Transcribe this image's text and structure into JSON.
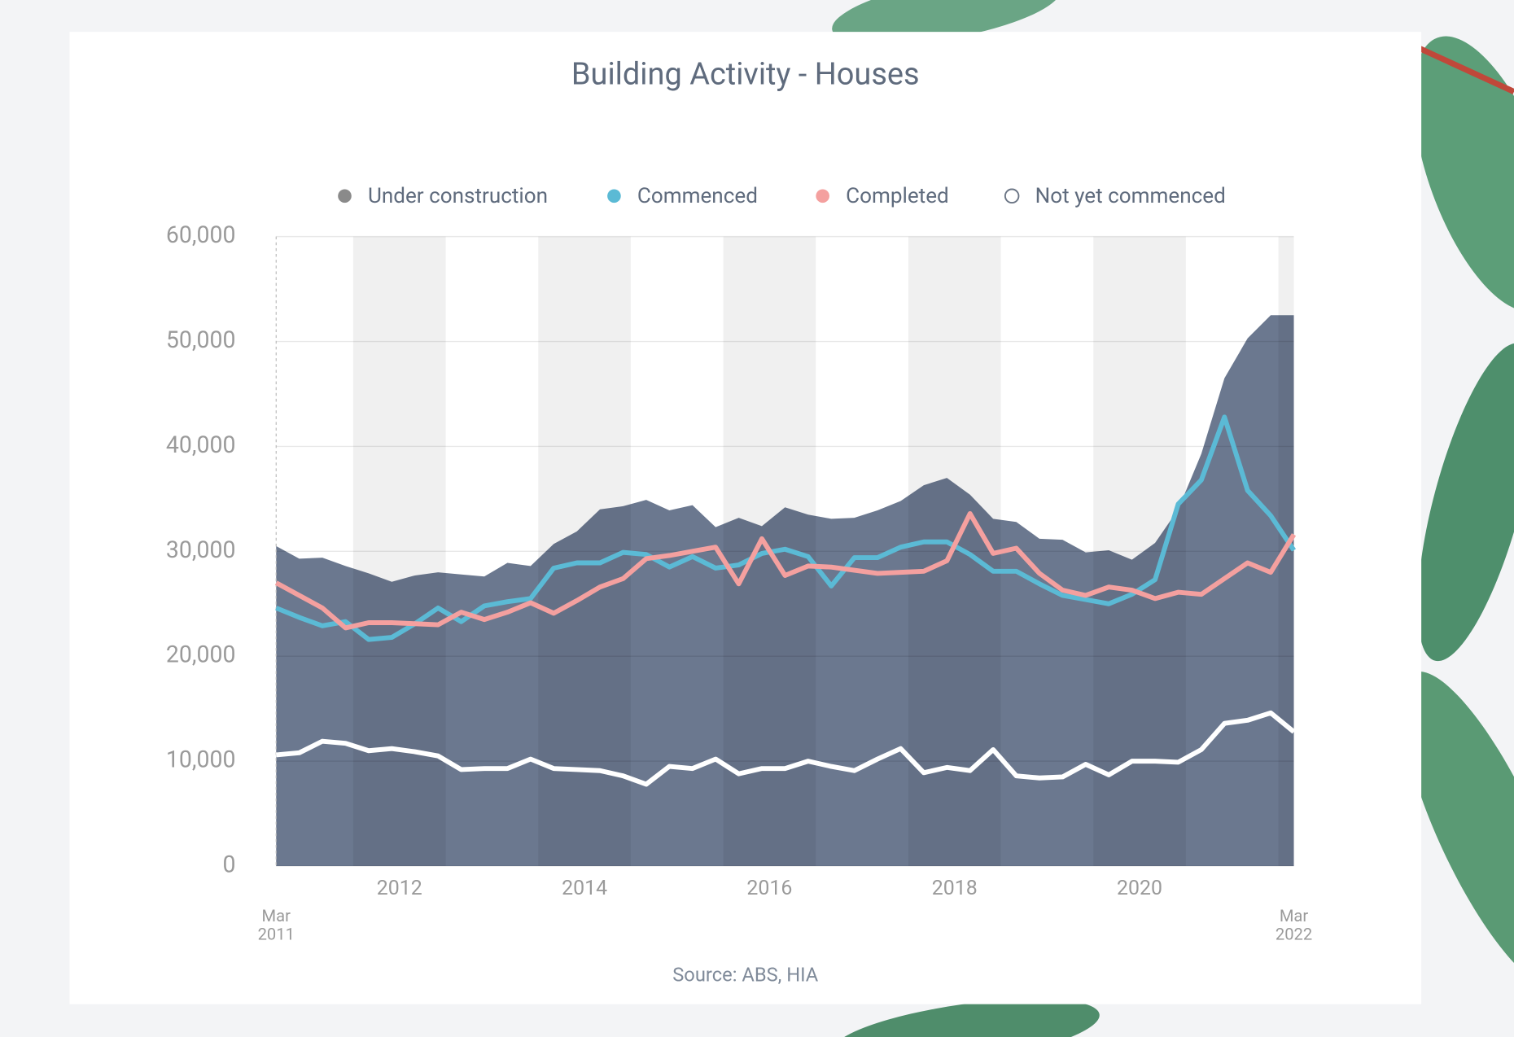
{
  "chart_data": {
    "type": "area-line",
    "title": "Building Activity - Houses",
    "source": "Source: ABS, HIA",
    "x": [
      2011.167,
      2011.417,
      2011.667,
      2011.917,
      2012.167,
      2012.417,
      2012.667,
      2012.917,
      2013.167,
      2013.417,
      2013.667,
      2013.917,
      2014.167,
      2014.417,
      2014.667,
      2014.917,
      2015.167,
      2015.417,
      2015.667,
      2015.917,
      2016.167,
      2016.417,
      2016.667,
      2016.917,
      2017.167,
      2017.417,
      2017.667,
      2017.917,
      2018.167,
      2018.417,
      2018.667,
      2018.917,
      2019.167,
      2019.417,
      2019.667,
      2019.917,
      2020.167,
      2020.417,
      2020.667,
      2020.917,
      2021.167,
      2021.417,
      2021.667,
      2021.917,
      2022.167
    ],
    "series": [
      {
        "name": "Under construction",
        "kind": "area",
        "color": "#6b788f",
        "legend_color": "#8a8a8a",
        "values": [
          30500,
          29300,
          29400,
          28600,
          27900,
          27100,
          27700,
          28000,
          27800,
          27600,
          28900,
          28600,
          30700,
          31900,
          34000,
          34300,
          34900,
          33900,
          34400,
          32300,
          33200,
          32400,
          34200,
          33500,
          33100,
          33200,
          33900,
          34800,
          36300,
          37000,
          35400,
          33100,
          32800,
          31200,
          31100,
          29900,
          30100,
          29200,
          30800,
          34000,
          39300,
          46500,
          50300,
          52500,
          52500
        ]
      },
      {
        "name": "Commenced",
        "kind": "line",
        "color": "#5bbad5",
        "values": [
          24600,
          23700,
          22900,
          23300,
          21600,
          21800,
          23100,
          24600,
          23300,
          24800,
          25200,
          25500,
          28400,
          28900,
          28900,
          29900,
          29700,
          28500,
          29500,
          28400,
          28700,
          29800,
          30200,
          29500,
          26700,
          29400,
          29400,
          30400,
          30900,
          30900,
          29700,
          28100,
          28100,
          26900,
          25800,
          25400,
          25000,
          25900,
          27300,
          34500,
          36800,
          42800,
          35800,
          33400,
          30100
        ]
      },
      {
        "name": "Completed",
        "kind": "line",
        "color": "#f4a09f",
        "values": [
          27000,
          25800,
          24600,
          22700,
          23200,
          23200,
          23100,
          23000,
          24200,
          23500,
          24200,
          25100,
          24100,
          25300,
          26600,
          27400,
          29300,
          29600,
          30000,
          30400,
          26900,
          31200,
          27700,
          28600,
          28500,
          28200,
          27900,
          28000,
          28100,
          29100,
          33600,
          29800,
          30300,
          27900,
          26300,
          25800,
          26600,
          26300,
          25500,
          26100,
          25900,
          27400,
          28900,
          28000,
          31600
        ]
      },
      {
        "name": "Not yet commenced",
        "kind": "line",
        "color": "#ffffff",
        "values": [
          10600,
          10800,
          11900,
          11700,
          11000,
          11200,
          10900,
          10500,
          9200,
          9300,
          9300,
          10200,
          9300,
          9200,
          9100,
          8600,
          7800,
          9500,
          9300,
          10200,
          8800,
          9300,
          9300,
          10000,
          9500,
          9100,
          10200,
          11200,
          8900,
          9400,
          9100,
          11100,
          8600,
          8400,
          8500,
          9700,
          8700,
          10000,
          10000,
          9900,
          11100,
          13600,
          13900,
          14600,
          12800
        ]
      }
    ],
    "xlim": [
      2011.167,
      2022.167
    ],
    "xticks": [
      {
        "value": 2011.167,
        "label": "Mar 2011"
      },
      {
        "value": 2012.5,
        "label": "2012"
      },
      {
        "value": 2014.5,
        "label": "2014"
      },
      {
        "value": 2016.5,
        "label": "2016"
      },
      {
        "value": 2018.5,
        "label": "2018"
      },
      {
        "value": 2020.5,
        "label": "2020"
      },
      {
        "value": 2022.167,
        "label": "Mar 2022"
      }
    ],
    "ylim": [
      0,
      60000
    ],
    "yticks": [
      0,
      {
        "value": 10000,
        "label": "10,000"
      },
      {
        "value": 20000,
        "label": "20,000"
      },
      {
        "value": 30000,
        "label": "30,000"
      },
      {
        "value": 40000,
        "label": "40,000"
      },
      {
        "value": 50000,
        "label": "50,000"
      },
      {
        "value": 60000,
        "label": "60,000"
      }
    ],
    "grid": true,
    "year_bands": true,
    "legend": "top"
  }
}
